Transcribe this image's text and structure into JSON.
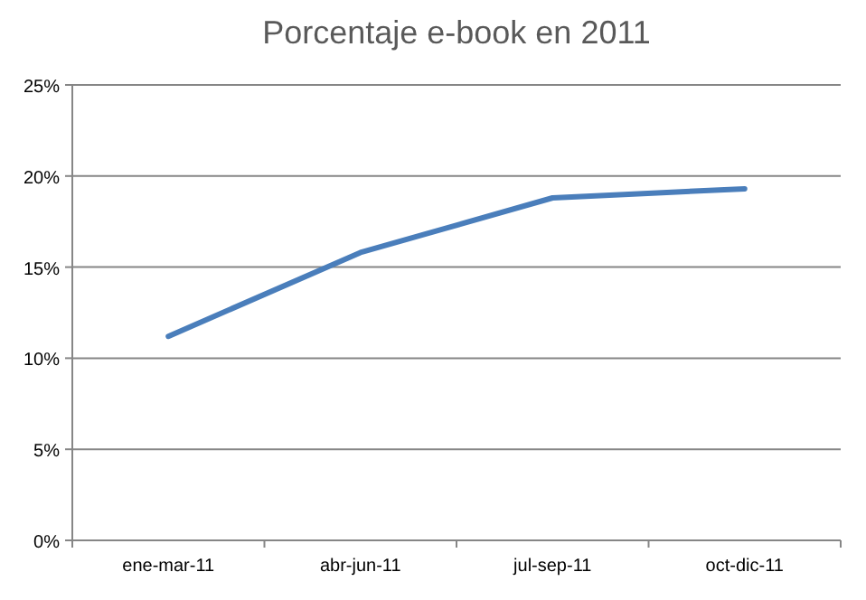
{
  "chart_data": {
    "type": "line",
    "title": "Porcentaje e-book en 2011",
    "categories": [
      "ene-mar-11",
      "abr-jun-11",
      "jul-sep-11",
      "oct-dic-11"
    ],
    "series": [
      {
        "color": "#4a7ebb",
        "values": [
          11.2,
          15.8,
          18.8,
          19.3
        ]
      }
    ],
    "ylim": [
      0,
      25
    ],
    "yticks": [
      {
        "value": 0,
        "label": "0%"
      },
      {
        "value": 5,
        "label": "5%"
      },
      {
        "value": 10,
        "label": "10%"
      },
      {
        "value": 15,
        "label": "15%"
      },
      {
        "value": 20,
        "label": "20%"
      },
      {
        "value": 25,
        "label": "25%"
      }
    ],
    "grid": "y",
    "marker": "none",
    "line_style": "solid"
  }
}
